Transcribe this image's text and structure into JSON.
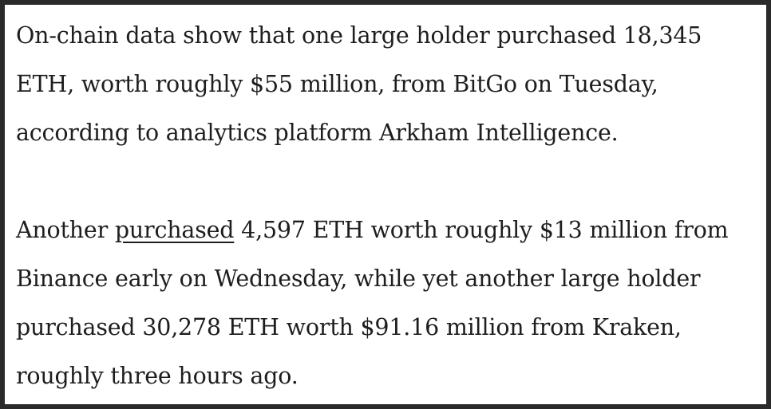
{
  "article": {
    "paragraph1": "On-chain data show that one large holder purchased 18,345 ETH, worth roughly $55 million, from BitGo on Tuesday, according to analytics platform Arkham Intelligence.",
    "paragraph2": {
      "before_link": "Another ",
      "link_text": "purchased",
      "after_link": " 4,597 ETH worth roughly $13 million from Binance early on Wednesday, while yet another large holder purchased 30,278 ETH worth $91.16 million from Kraken, roughly three hours ago."
    }
  }
}
